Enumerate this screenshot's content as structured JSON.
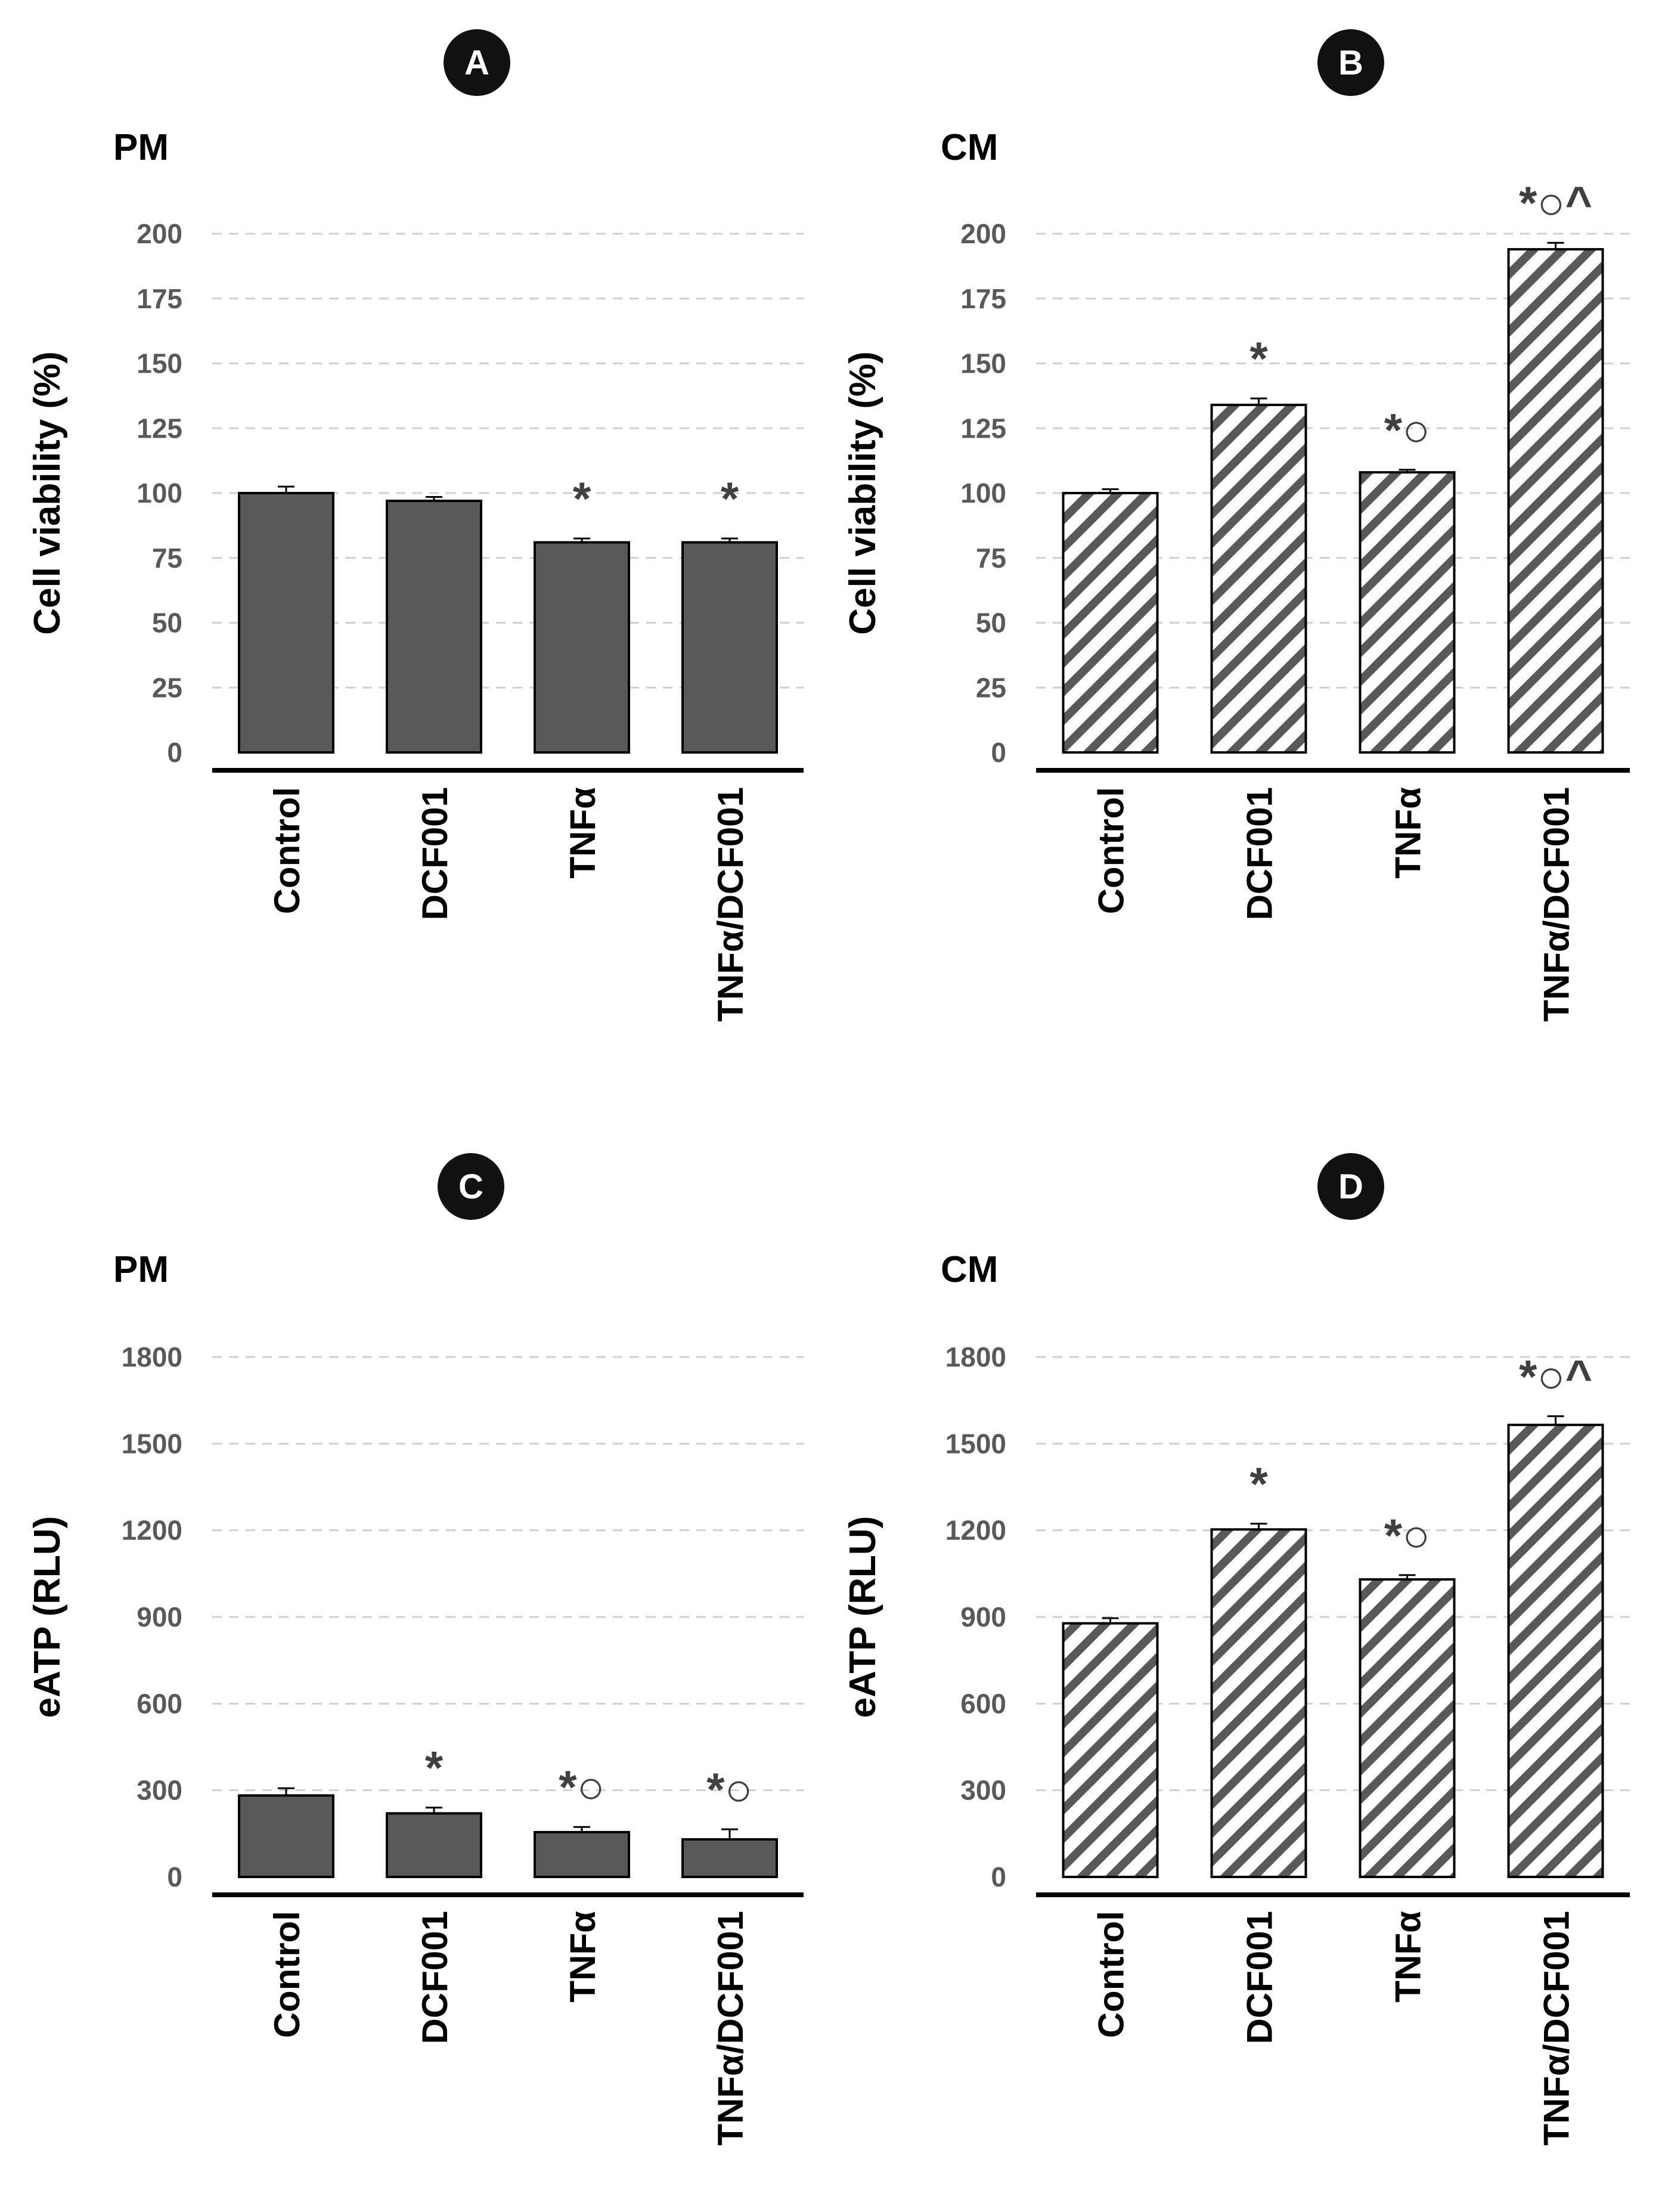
{
  "chart_data": [
    {
      "panel": "A",
      "type": "bar",
      "group_label": "PM",
      "ylabel": "Cell viability (%)",
      "xlabel": "",
      "categories": [
        "Control",
        "DCF001",
        "TNFα",
        "TNFα/DCF001"
      ],
      "values": [
        100,
        97,
        81,
        81
      ],
      "errors": [
        2.5,
        1.5,
        1.5,
        1.5
      ],
      "annotations": [
        "",
        "",
        "*",
        "*"
      ],
      "ylim": [
        0,
        200
      ],
      "yticks": [
        0,
        25,
        50,
        75,
        100,
        125,
        150,
        175,
        200
      ],
      "grid": true,
      "fill": "solid",
      "bar_color": "#595959"
    },
    {
      "panel": "B",
      "type": "bar",
      "group_label": "CM",
      "ylabel": "Cell viability (%)",
      "xlabel": "",
      "categories": [
        "Control",
        "DCF001",
        "TNFα",
        "TNFα/DCF001"
      ],
      "values": [
        100,
        134,
        108,
        194
      ],
      "errors": [
        1.5,
        2.5,
        1,
        2.5
      ],
      "annotations": [
        "",
        "*",
        "*○",
        "*○^"
      ],
      "ylim": [
        0,
        200
      ],
      "yticks": [
        0,
        25,
        50,
        75,
        100,
        125,
        150,
        175,
        200
      ],
      "grid": true,
      "fill": "hatched",
      "bar_color": "#595959"
    },
    {
      "panel": "C",
      "type": "bar",
      "group_label": "PM",
      "ylabel": "eATP (RLU)",
      "xlabel": "",
      "categories": [
        "Control",
        "DCF001",
        "TNFα",
        "TNFα/DCF001"
      ],
      "values": [
        282,
        220,
        155,
        130
      ],
      "errors": [
        25,
        20,
        18,
        35
      ],
      "annotations": [
        "",
        "*",
        "*○",
        "*○"
      ],
      "ylim": [
        0,
        1800
      ],
      "yticks": [
        0,
        300,
        600,
        900,
        1200,
        1500,
        1800
      ],
      "grid": true,
      "fill": "solid",
      "bar_color": "#595959"
    },
    {
      "panel": "D",
      "type": "bar",
      "group_label": "CM",
      "ylabel": "eATP (RLU)",
      "xlabel": "",
      "categories": [
        "Control",
        "DCF001",
        "TNFα",
        "TNFα/DCF001"
      ],
      "values": [
        878,
        1203,
        1030,
        1565
      ],
      "errors": [
        18,
        20,
        15,
        30
      ],
      "annotations": [
        "",
        "*",
        "*○",
        "*○^"
      ],
      "ylim": [
        0,
        1800
      ],
      "yticks": [
        0,
        300,
        600,
        900,
        1200,
        1500,
        1800
      ],
      "grid": true,
      "fill": "hatched",
      "bar_color": "#595959"
    }
  ],
  "colors": {
    "bar": "#595959",
    "axis": "#000000",
    "grid": "#d0d0d0",
    "tick_text": "#595959",
    "badge": "#111111",
    "annotation": "#404040"
  }
}
